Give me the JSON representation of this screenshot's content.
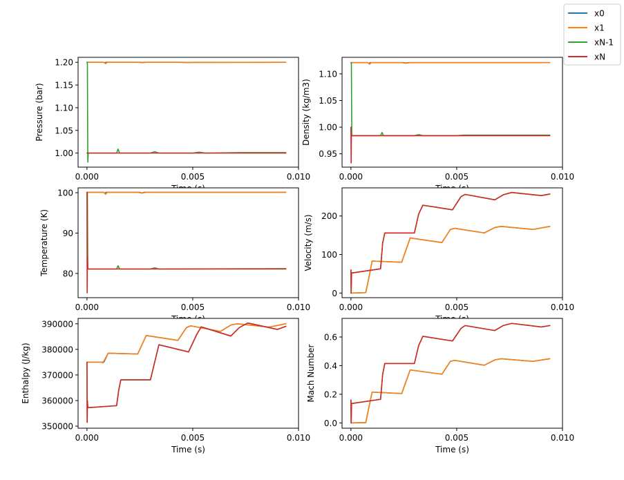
{
  "legend": {
    "placement": "top-right",
    "entries": [
      {
        "label": "x0",
        "color": "#1f77b4"
      },
      {
        "label": "x1",
        "color": "#ff7f0e"
      },
      {
        "label": "xN-1",
        "color": "#2ca02c"
      },
      {
        "label": "xN",
        "color": "#d62728"
      }
    ]
  },
  "chart_data": [
    {
      "type": "line",
      "id": "pressure",
      "title": "",
      "xlabel": "Time (s)",
      "ylabel": "Pressure (bar)",
      "xlim": [
        -0.00042,
        0.01
      ],
      "ylim": [
        0.969,
        1.211
      ],
      "xticks": [
        0.0,
        0.005,
        0.01
      ],
      "xtick_labels": [
        "0.000",
        "0.005",
        "0.010"
      ],
      "yticks": [
        1.0,
        1.05,
        1.1,
        1.15,
        1.2
      ],
      "ytick_labels": [
        "1.00",
        "1.05",
        "1.10",
        "1.15",
        "1.20"
      ],
      "grid": false,
      "series": [
        {
          "name": "x0",
          "x": [
            0,
            0.0008,
            0.00085,
            0.0009,
            0.0025,
            0.0026,
            0.0027,
            0.0045,
            0.0047,
            0.0094
          ],
          "y": [
            1.2,
            1.2,
            1.199,
            1.2,
            1.2,
            1.1995,
            1.2,
            1.2,
            1.1997,
            1.2
          ]
        },
        {
          "name": "x1",
          "x": [
            0,
            0.0008,
            0.00088,
            0.00096,
            0.0024,
            0.0026,
            0.0028,
            0.0044,
            0.0047,
            0.005,
            0.0094
          ],
          "y": [
            1.2,
            1.2,
            1.197,
            1.2,
            1.2,
            1.199,
            1.2,
            1.2,
            1.1993,
            1.2,
            1.2
          ]
        },
        {
          "name": "xN-1",
          "x": [
            0,
            2e-05,
            4e-05,
            6e-05,
            0.0014,
            0.00147,
            0.00154,
            0.003,
            0.0032,
            0.0034,
            0.005,
            0.0053,
            0.0056,
            0.0073,
            0.0094
          ],
          "y": [
            1.2,
            1.2,
            0.98,
            1.0,
            1.0,
            1.009,
            1.0,
            1.0,
            1.003,
            1.0,
            1.0,
            1.002,
            1.0,
            1.001,
            1.001
          ]
        },
        {
          "name": "xN",
          "x": [
            0,
            4e-05,
            0.0094
          ],
          "y": [
            1.0,
            1.0,
            1.0
          ]
        }
      ]
    },
    {
      "type": "line",
      "id": "density",
      "title": "",
      "xlabel": "Time (s)",
      "ylabel": "Density (kg/m3)",
      "xlim": [
        -0.00042,
        0.01
      ],
      "ylim": [
        0.925,
        1.131
      ],
      "xticks": [
        0.0,
        0.005,
        0.01
      ],
      "xtick_labels": [
        "0.000",
        "0.005",
        "0.010"
      ],
      "yticks": [
        0.95,
        1.0,
        1.05,
        1.1
      ],
      "ytick_labels": [
        "0.95",
        "1.00",
        "1.05",
        "1.10"
      ],
      "grid": false,
      "series": [
        {
          "name": "x0",
          "x": [
            0,
            0.0008,
            0.00085,
            0.0009,
            0.0025,
            0.0026,
            0.0027,
            0.0094
          ],
          "y": [
            1.121,
            1.121,
            1.1195,
            1.121,
            1.121,
            1.1203,
            1.121,
            1.121
          ]
        },
        {
          "name": "x1",
          "x": [
            0,
            0.0008,
            0.00088,
            0.00096,
            0.0024,
            0.0026,
            0.0028,
            0.0094
          ],
          "y": [
            1.121,
            1.121,
            1.118,
            1.121,
            1.121,
            1.1198,
            1.121,
            1.121
          ]
        },
        {
          "name": "xN-1",
          "x": [
            0,
            2e-05,
            4e-05,
            0.0014,
            0.00147,
            0.00154,
            0.003,
            0.0032,
            0.0034,
            0.005,
            0.0053,
            0.0094
          ],
          "y": [
            1.121,
            1.121,
            0.984,
            0.984,
            0.99,
            0.984,
            0.984,
            0.986,
            0.984,
            0.984,
            0.985,
            0.985
          ]
        },
        {
          "name": "xN",
          "x": [
            0,
            1e-05,
            2e-05,
            4e-05,
            0.0094
          ],
          "y": [
            1.0,
            0.933,
            0.984,
            0.984,
            0.984
          ]
        }
      ]
    },
    {
      "type": "line",
      "id": "temperature",
      "title": "",
      "xlabel": "Time (s)",
      "ylabel": "Temperature (K)",
      "xlim": [
        -0.00042,
        0.01
      ],
      "ylim": [
        74.0,
        101.2
      ],
      "xticks": [
        0.0,
        0.005,
        0.01
      ],
      "xtick_labels": [
        "0.000",
        "0.005",
        "0.010"
      ],
      "yticks": [
        80,
        90,
        100
      ],
      "ytick_labels": [
        "80",
        "90",
        "100"
      ],
      "grid": false,
      "series": [
        {
          "name": "x0",
          "x": [
            0,
            0.0008,
            0.00085,
            0.0009,
            0.0025,
            0.0026,
            0.0027,
            0.0094
          ],
          "y": [
            100.1,
            100.1,
            99.8,
            100.1,
            100.1,
            99.9,
            100.1,
            100.1
          ]
        },
        {
          "name": "x1",
          "x": [
            0,
            0.0008,
            0.00088,
            0.00096,
            0.0024,
            0.0026,
            0.0028,
            0.0094
          ],
          "y": [
            100.1,
            100.1,
            99.6,
            100.1,
            100.1,
            99.9,
            100.1,
            100.1
          ]
        },
        {
          "name": "xN-1",
          "x": [
            0,
            2e-05,
            4e-05,
            0.0014,
            0.00147,
            0.00154,
            0.003,
            0.0032,
            0.0034,
            0.0094
          ],
          "y": [
            100.1,
            100.1,
            81.1,
            81.1,
            81.9,
            81.1,
            81.1,
            81.4,
            81.1,
            81.2
          ]
        },
        {
          "name": "xN",
          "x": [
            0,
            1e-05,
            2e-05,
            4e-05,
            0.0094
          ],
          "y": [
            100.1,
            75.2,
            84.0,
            81.1,
            81.1
          ]
        }
      ]
    },
    {
      "type": "line",
      "id": "velocity",
      "title": "",
      "xlabel": "Time (s)",
      "ylabel": "Velocity (m/s)",
      "xlim": [
        -0.00042,
        0.01
      ],
      "ylim": [
        -12,
        273
      ],
      "xticks": [
        0.0,
        0.005,
        0.01
      ],
      "xtick_labels": [
        "0.000",
        "0.005",
        "0.010"
      ],
      "yticks": [
        0,
        100,
        200
      ],
      "ytick_labels": [
        "0",
        "100",
        "200"
      ],
      "grid": false,
      "series": [
        {
          "name": "x0",
          "x": [
            0,
            0.0007,
            0.00085,
            0.001,
            0.0024,
            0.0028,
            0.0043,
            0.0047,
            0.0049,
            0.0063,
            0.0068,
            0.0071,
            0.0086,
            0.0094
          ],
          "y": [
            0,
            1,
            40,
            83,
            80,
            143,
            131,
            165,
            168,
            156,
            170,
            173,
            165,
            173
          ]
        },
        {
          "name": "x1",
          "x": [
            0,
            0.0007,
            0.00085,
            0.001,
            0.0024,
            0.0028,
            0.0043,
            0.0047,
            0.0049,
            0.0063,
            0.0068,
            0.0071,
            0.0086,
            0.0094
          ],
          "y": [
            0,
            1,
            40,
            83,
            80,
            143,
            131,
            165,
            168,
            156,
            170,
            173,
            165,
            173
          ]
        },
        {
          "name": "xN-1",
          "x": [
            0,
            1e-05,
            3e-05,
            0.0014,
            0.0015,
            0.0016,
            0.003,
            0.0032,
            0.0034,
            0.0048,
            0.0052,
            0.0054,
            0.0068,
            0.0072,
            0.0076,
            0.009,
            0.0094
          ],
          "y": [
            60,
            0,
            52,
            63,
            130,
            156,
            156,
            205,
            228,
            216,
            250,
            256,
            242,
            255,
            261,
            253,
            257
          ]
        },
        {
          "name": "xN",
          "x": [
            0,
            1e-05,
            3e-05,
            0.0014,
            0.0015,
            0.0016,
            0.003,
            0.0032,
            0.0034,
            0.0048,
            0.0052,
            0.0054,
            0.0068,
            0.0072,
            0.0076,
            0.009,
            0.0094
          ],
          "y": [
            60,
            0,
            52,
            63,
            130,
            156,
            156,
            205,
            228,
            216,
            250,
            256,
            242,
            255,
            261,
            253,
            257
          ]
        }
      ]
    },
    {
      "type": "line",
      "id": "enthalpy",
      "title": "",
      "xlabel": "Time (s)",
      "ylabel": "Enthalpy (J/kg)",
      "xlim": [
        -0.00042,
        0.01
      ],
      "ylim": [
        349200,
        392100
      ],
      "xticks": [
        0.0,
        0.005,
        0.01
      ],
      "xtick_labels": [
        "0.000",
        "0.005",
        "0.010"
      ],
      "yticks": [
        350000,
        360000,
        370000,
        380000,
        390000
      ],
      "ytick_labels": [
        "350000",
        "360000",
        "370000",
        "380000",
        "390000"
      ],
      "grid": false,
      "series": [
        {
          "name": "x0",
          "x": [
            0,
            2e-05,
            0.0008,
            0.001,
            0.0024,
            0.0028,
            0.0043,
            0.0047,
            0.0049,
            0.0063,
            0.0068,
            0.0071,
            0.0086,
            0.0094
          ],
          "y": [
            375000,
            375000,
            375000,
            378500,
            378200,
            385400,
            383500,
            388500,
            389200,
            387000,
            389500,
            390000,
            388700,
            390000
          ]
        },
        {
          "name": "x1",
          "x": [
            0,
            2e-05,
            0.0007,
            0.00075,
            0.001,
            0.0024,
            0.0028,
            0.0043,
            0.0047,
            0.0049,
            0.0063,
            0.0068,
            0.0071,
            0.0086,
            0.0094
          ],
          "y": [
            375000,
            375000,
            375000,
            374700,
            378500,
            378200,
            385400,
            383500,
            388500,
            389200,
            387000,
            389500,
            390000,
            388700,
            390000
          ]
        },
        {
          "name": "xN-1",
          "x": [
            0,
            1e-05,
            2e-05,
            4e-05,
            0.0014,
            0.0015,
            0.0016,
            0.003,
            0.0032,
            0.0034,
            0.0048,
            0.0052,
            0.0054,
            0.0068,
            0.0072,
            0.0076,
            0.009,
            0.0094
          ],
          "y": [
            375000,
            351500,
            360000,
            357200,
            358000,
            364000,
            368100,
            368100,
            375000,
            381800,
            379000,
            386000,
            388800,
            385200,
            388500,
            390300,
            387800,
            389000
          ]
        },
        {
          "name": "xN",
          "x": [
            0,
            1e-05,
            2e-05,
            4e-05,
            0.0014,
            0.0015,
            0.0016,
            0.003,
            0.0032,
            0.0034,
            0.0048,
            0.0052,
            0.0054,
            0.0068,
            0.0072,
            0.0076,
            0.009,
            0.0094
          ],
          "y": [
            375000,
            351500,
            360000,
            357200,
            358000,
            364000,
            368100,
            368100,
            375000,
            381800,
            379000,
            386000,
            388800,
            385200,
            388500,
            390300,
            387800,
            389000
          ]
        }
      ]
    },
    {
      "type": "line",
      "id": "mach",
      "title": "",
      "xlabel": "Time (s)",
      "ylabel": "Mach Number",
      "xlim": [
        -0.00042,
        0.01
      ],
      "ylim": [
        -0.037,
        0.73
      ],
      "xticks": [
        0.0,
        0.005,
        0.01
      ],
      "xtick_labels": [
        "0.000",
        "0.005",
        "0.010"
      ],
      "yticks": [
        0.0,
        0.2,
        0.4,
        0.6
      ],
      "ytick_labels": [
        "0.0",
        "0.2",
        "0.4",
        "0.6"
      ],
      "grid": false,
      "series": [
        {
          "name": "x0",
          "x": [
            0,
            0.0007,
            0.00085,
            0.001,
            0.0024,
            0.0028,
            0.0043,
            0.0047,
            0.0049,
            0.0063,
            0.0068,
            0.0071,
            0.0086,
            0.0094
          ],
          "y": [
            0,
            0.002,
            0.11,
            0.215,
            0.205,
            0.37,
            0.34,
            0.43,
            0.437,
            0.403,
            0.44,
            0.448,
            0.43,
            0.448
          ]
        },
        {
          "name": "x1",
          "x": [
            0,
            0.0007,
            0.00085,
            0.001,
            0.0024,
            0.0028,
            0.0043,
            0.0047,
            0.0049,
            0.0063,
            0.0068,
            0.0071,
            0.0086,
            0.0094
          ],
          "y": [
            0,
            0.002,
            0.11,
            0.215,
            0.205,
            0.37,
            0.34,
            0.43,
            0.437,
            0.403,
            0.44,
            0.448,
            0.43,
            0.448
          ]
        },
        {
          "name": "xN-1",
          "x": [
            0,
            1e-05,
            3e-05,
            0.0014,
            0.0015,
            0.0016,
            0.003,
            0.0032,
            0.0034,
            0.0048,
            0.0052,
            0.0054,
            0.0068,
            0.0072,
            0.0076,
            0.009,
            0.0094
          ],
          "y": [
            0.16,
            0,
            0.135,
            0.165,
            0.34,
            0.415,
            0.415,
            0.54,
            0.605,
            0.572,
            0.66,
            0.68,
            0.645,
            0.68,
            0.695,
            0.67,
            0.68
          ]
        },
        {
          "name": "xN",
          "x": [
            0,
            1e-05,
            3e-05,
            0.0014,
            0.0015,
            0.0016,
            0.003,
            0.0032,
            0.0034,
            0.0048,
            0.0052,
            0.0054,
            0.0068,
            0.0072,
            0.0076,
            0.009,
            0.0094
          ],
          "y": [
            0.16,
            0,
            0.135,
            0.165,
            0.34,
            0.415,
            0.415,
            0.54,
            0.605,
            0.572,
            0.66,
            0.68,
            0.645,
            0.68,
            0.695,
            0.67,
            0.68
          ]
        }
      ]
    }
  ]
}
